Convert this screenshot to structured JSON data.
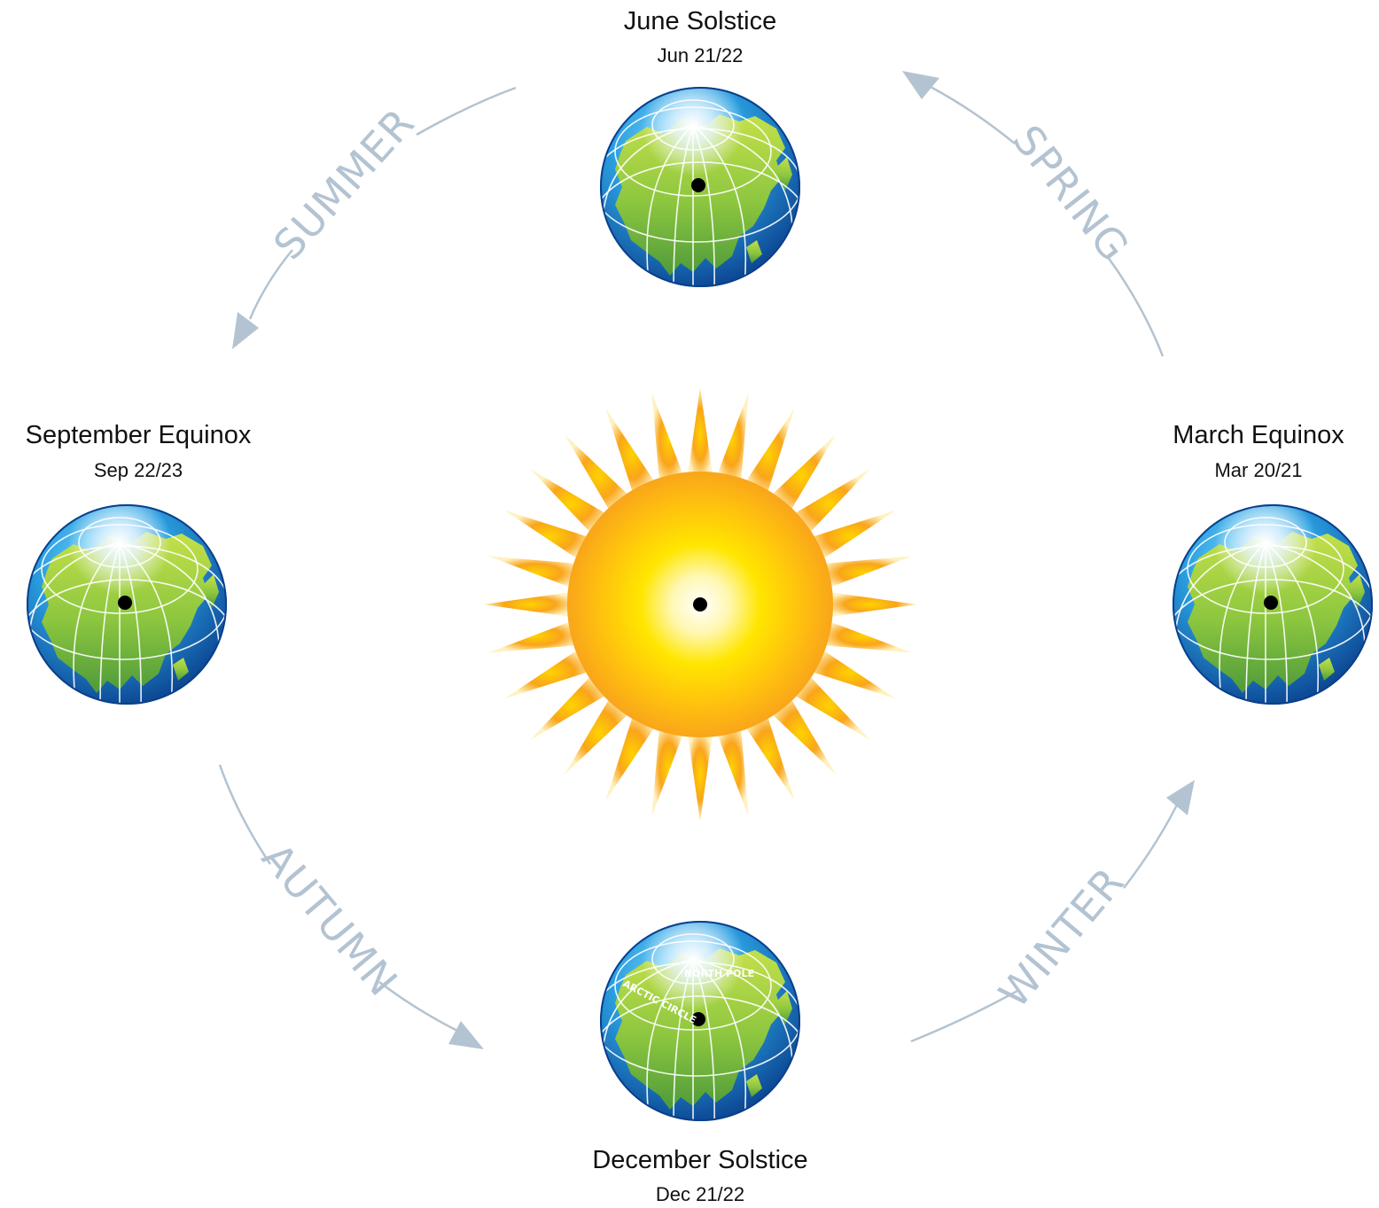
{
  "colors": {
    "arrow": "#b3c3d1",
    "ocean_light": "#5ec8f2",
    "ocean_dark": "#0b4d9c",
    "land_light": "#b9dc45",
    "land_dark": "#4f9a3c",
    "sun_core": "#ffffff",
    "sun_mid": "#ffe600",
    "sun_ray": "#f9a51a",
    "text": "#111111"
  },
  "positions": {
    "june": {
      "title": "June Solstice",
      "date": "Jun 21/22"
    },
    "september": {
      "title": "September Equinox",
      "date": "Sep 22/23"
    },
    "march": {
      "title": "March Equinox",
      "date": "Mar 20/21"
    },
    "december": {
      "title": "December Solstice",
      "date": "Dec 21/22"
    }
  },
  "seasons": {
    "summer": "SUMMER",
    "spring": "SPRING",
    "autumn": "AUTUMN",
    "winter": "WINTER"
  },
  "globe_labels": {
    "north_pole": "NORTH POLE",
    "arctic_circle": "ARCTIC CIRCLE"
  }
}
